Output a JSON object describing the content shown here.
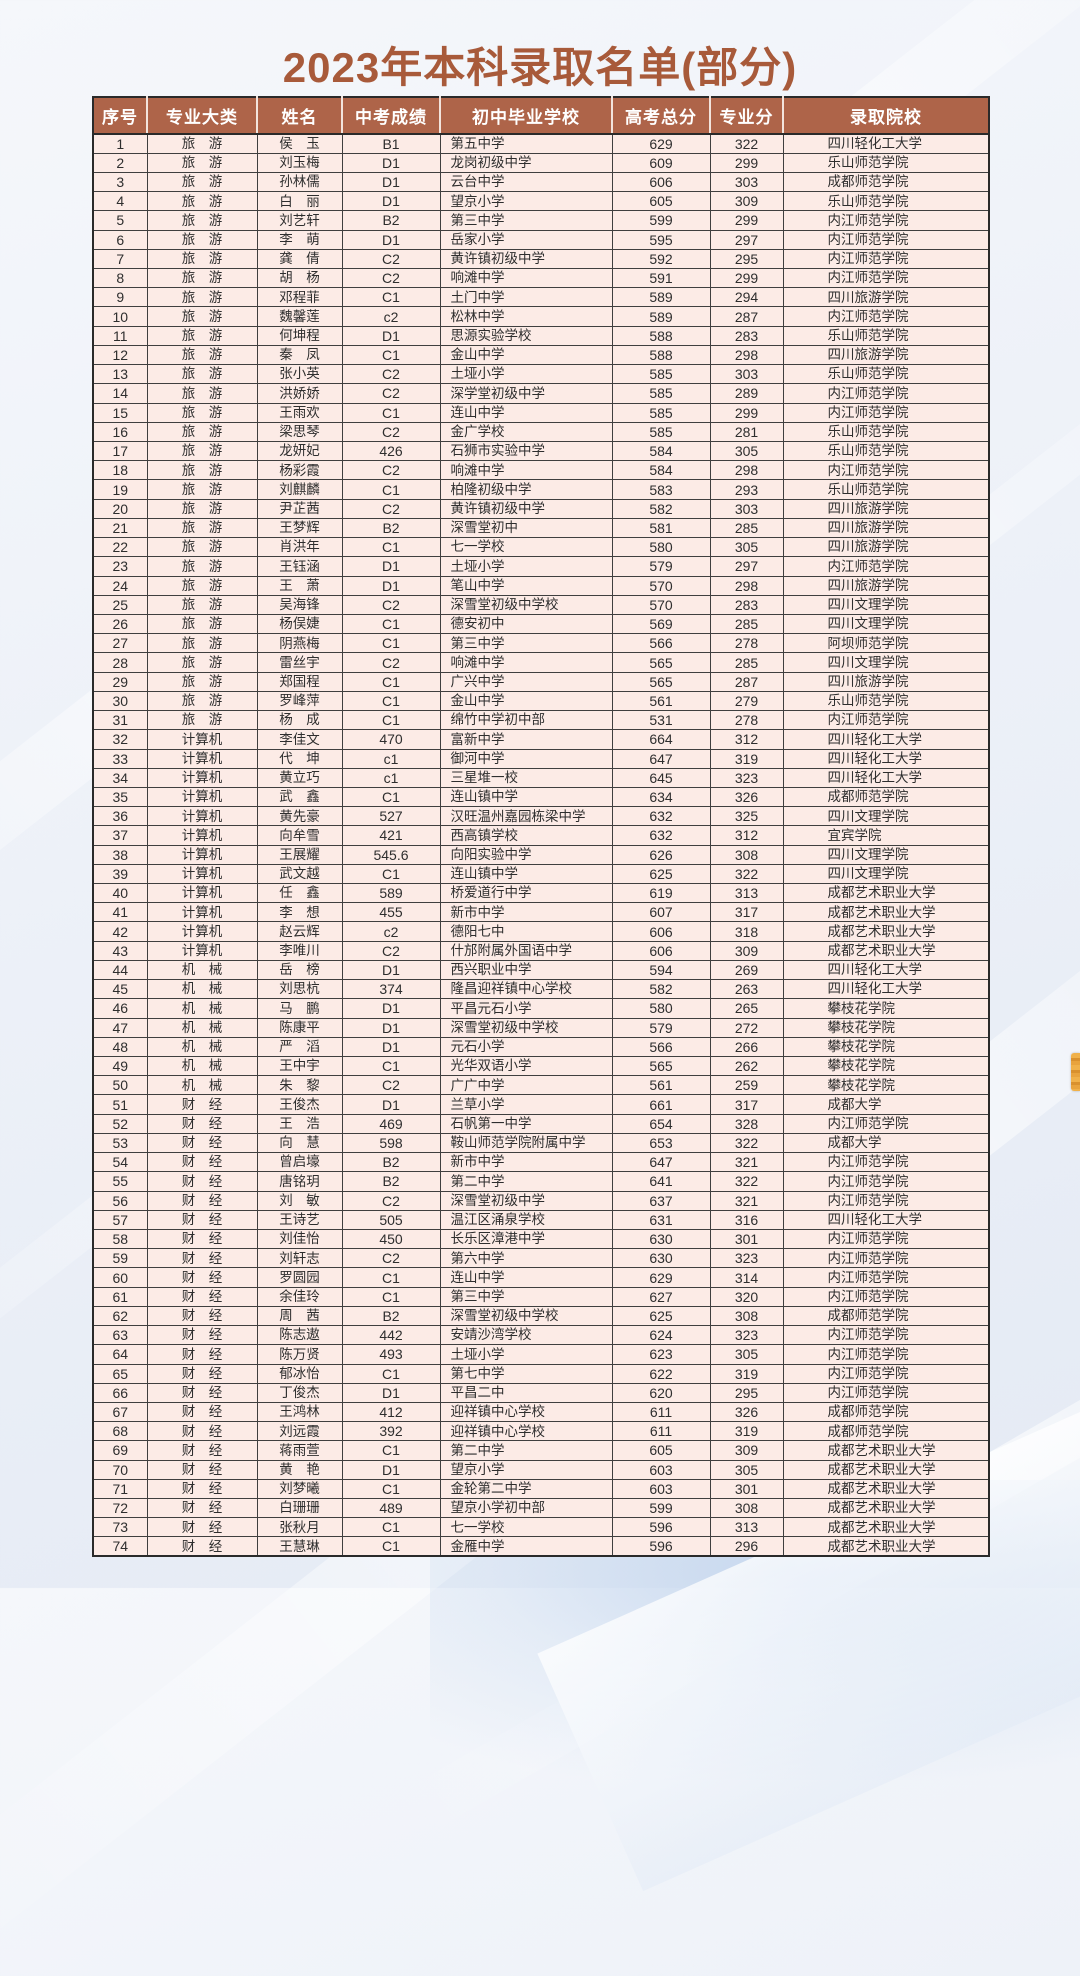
{
  "page": {
    "title": "2023年本科录取名单(部分)"
  },
  "colors": {
    "title_text": "#a85a3a",
    "header_bg": "#ae6449",
    "header_text": "#ffffff",
    "row_bg": "#fcebe6",
    "grid_border": "#3f3f3f",
    "body_text": "#2e2e2e",
    "edge_marker": "#e8a33d"
  },
  "table": {
    "columns": [
      "序号",
      "专业大类",
      "姓名",
      "中考成绩",
      "初中毕业学校",
      "高考总分",
      "专业分",
      "录取院校"
    ],
    "rows": [
      [
        1,
        "旅　游",
        "侯　玉",
        "B1",
        "第五中学",
        629,
        322,
        "四川轻化工大学"
      ],
      [
        2,
        "旅　游",
        "刘玉梅",
        "D1",
        "龙岗初级中学",
        609,
        299,
        "乐山师范学院"
      ],
      [
        3,
        "旅　游",
        "孙林儒",
        "D1",
        "云台中学",
        606,
        303,
        "成都师范学院"
      ],
      [
        4,
        "旅　游",
        "白　丽",
        "D1",
        "望京小学",
        605,
        309,
        "乐山师范学院"
      ],
      [
        5,
        "旅　游",
        "刘艺轩",
        "B2",
        "第三中学",
        599,
        299,
        "内江师范学院"
      ],
      [
        6,
        "旅　游",
        "李　萌",
        "D1",
        "岳家小学",
        595,
        297,
        "内江师范学院"
      ],
      [
        7,
        "旅　游",
        "龚　倩",
        "C2",
        "黄许镇初级中学",
        592,
        295,
        "内江师范学院"
      ],
      [
        8,
        "旅　游",
        "胡　杨",
        "C2",
        "响滩中学",
        591,
        299,
        "内江师范学院"
      ],
      [
        9,
        "旅　游",
        "邓程菲",
        "C1",
        "土门中学",
        589,
        294,
        "四川旅游学院"
      ],
      [
        10,
        "旅　游",
        "魏馨莲",
        "c2",
        "松林中学",
        589,
        287,
        "内江师范学院"
      ],
      [
        11,
        "旅　游",
        "何坤程",
        "D1",
        "思源实验学校",
        588,
        283,
        "乐山师范学院"
      ],
      [
        12,
        "旅　游",
        "秦　凤",
        "C1",
        "金山中学",
        588,
        298,
        "四川旅游学院"
      ],
      [
        13,
        "旅　游",
        "张小英",
        "C2",
        "土垭小学",
        585,
        303,
        "乐山师范学院"
      ],
      [
        14,
        "旅　游",
        "洪娇娇",
        "C2",
        "深学堂初级中学",
        585,
        289,
        "内江师范学院"
      ],
      [
        15,
        "旅　游",
        "王雨欢",
        "C1",
        "连山中学",
        585,
        299,
        "内江师范学院"
      ],
      [
        16,
        "旅　游",
        "梁思琴",
        "C2",
        "金广学校",
        585,
        281,
        "乐山师范学院"
      ],
      [
        17,
        "旅　游",
        "龙妍妃",
        "426",
        "石狮市实验中学",
        584,
        305,
        "乐山师范学院"
      ],
      [
        18,
        "旅　游",
        "杨彩霞",
        "C2",
        "响滩中学",
        584,
        298,
        "内江师范学院"
      ],
      [
        19,
        "旅　游",
        "刘麒麟",
        "C1",
        "柏隆初级中学",
        583,
        293,
        "乐山师范学院"
      ],
      [
        20,
        "旅　游",
        "尹芷茜",
        "C2",
        "黄许镇初级中学",
        582,
        303,
        "四川旅游学院"
      ],
      [
        21,
        "旅　游",
        "王梦辉",
        "B2",
        "深雪堂初中",
        581,
        285,
        "四川旅游学院"
      ],
      [
        22,
        "旅　游",
        "肖洪年",
        "C1",
        "七一学校",
        580,
        305,
        "四川旅游学院"
      ],
      [
        23,
        "旅　游",
        "王钰涵",
        "D1",
        "土垭小学",
        579,
        297,
        "内江师范学院"
      ],
      [
        24,
        "旅　游",
        "王　萧",
        "D1",
        "笔山中学",
        570,
        298,
        "四川旅游学院"
      ],
      [
        25,
        "旅　游",
        "吴海锋",
        "C2",
        "深雪堂初级中学校",
        570,
        283,
        "四川文理学院"
      ],
      [
        26,
        "旅　游",
        "杨俣婕",
        "C1",
        "德安初中",
        569,
        285,
        "四川文理学院"
      ],
      [
        27,
        "旅　游",
        "阴燕梅",
        "C1",
        "第三中学",
        566,
        278,
        "阿坝师范学院"
      ],
      [
        28,
        "旅　游",
        "雷丝宇",
        "C2",
        "响滩中学",
        565,
        285,
        "四川文理学院"
      ],
      [
        29,
        "旅　游",
        "郑国程",
        "C1",
        "广兴中学",
        565,
        287,
        "四川旅游学院"
      ],
      [
        30,
        "旅　游",
        "罗峰萍",
        "C1",
        "金山中学",
        561,
        279,
        "乐山师范学院"
      ],
      [
        31,
        "旅　游",
        "杨　成",
        "C1",
        "绵竹中学初中部",
        531,
        278,
        "内江师范学院"
      ],
      [
        32,
        "计算机",
        "李佳文",
        "470",
        "富新中学",
        664,
        312,
        "四川轻化工大学"
      ],
      [
        33,
        "计算机",
        "代　坤",
        "c1",
        "御河中学",
        647,
        319,
        "四川轻化工大学"
      ],
      [
        34,
        "计算机",
        "黄立巧",
        "c1",
        "三星堆一校",
        645,
        323,
        "四川轻化工大学"
      ],
      [
        35,
        "计算机",
        "武　鑫",
        "C1",
        "连山镇中学",
        634,
        326,
        "成都师范学院"
      ],
      [
        36,
        "计算机",
        "黄先豪",
        "527",
        "汉旺温州嘉园栋梁中学",
        632,
        325,
        "四川文理学院"
      ],
      [
        37,
        "计算机",
        "向牟雪",
        "421",
        "西高镇学校",
        632,
        312,
        "宜宾学院"
      ],
      [
        38,
        "计算机",
        "王展耀",
        "545.6",
        "向阳实验中学",
        626,
        308,
        "四川文理学院"
      ],
      [
        39,
        "计算机",
        "武文越",
        "C1",
        "连山镇中学",
        625,
        322,
        "四川文理学院"
      ],
      [
        40,
        "计算机",
        "任　鑫",
        "589",
        "桥爱道行中学",
        619,
        313,
        "成都艺术职业大学"
      ],
      [
        41,
        "计算机",
        "李　想",
        "455",
        "新市中学",
        607,
        317,
        "成都艺术职业大学"
      ],
      [
        42,
        "计算机",
        "赵云辉",
        "c2",
        "德阳七中",
        606,
        318,
        "成都艺术职业大学"
      ],
      [
        43,
        "计算机",
        "李唯川",
        "C2",
        "什邡附属外国语中学",
        606,
        309,
        "成都艺术职业大学"
      ],
      [
        44,
        "机　械",
        "岳　榜",
        "D1",
        "西兴职业中学",
        594,
        269,
        "四川轻化工大学"
      ],
      [
        45,
        "机　械",
        "刘思杭",
        "374",
        "隆昌迎祥镇中心学校",
        582,
        263,
        "四川轻化工大学"
      ],
      [
        46,
        "机　械",
        "马　鹏",
        "D1",
        "平昌元石小学",
        580,
        265,
        "攀枝花学院"
      ],
      [
        47,
        "机　械",
        "陈康平",
        "D1",
        "深雪堂初级中学校",
        579,
        272,
        "攀枝花学院"
      ],
      [
        48,
        "机　械",
        "严　滔",
        "D1",
        "元石小学",
        566,
        266,
        "攀枝花学院"
      ],
      [
        49,
        "机　械",
        "王中宇",
        "C1",
        "光华双语小学",
        565,
        262,
        "攀枝花学院"
      ],
      [
        50,
        "机　械",
        "朱　黎",
        "C2",
        "广广中学",
        561,
        259,
        "攀枝花学院"
      ],
      [
        51,
        "财　经",
        "王俊杰",
        "D1",
        "兰草小学",
        661,
        317,
        "成都大学"
      ],
      [
        52,
        "财　经",
        "王　浩",
        "469",
        "石帆第一中学",
        654,
        328,
        "内江师范学院"
      ],
      [
        53,
        "财　经",
        "向　慧",
        "598",
        "鞍山师范学院附属中学",
        653,
        322,
        "成都大学"
      ],
      [
        54,
        "财　经",
        "曾启壕",
        "B2",
        "新市中学",
        647,
        321,
        "内江师范学院"
      ],
      [
        55,
        "财　经",
        "唐铭玥",
        "B2",
        "第二中学",
        641,
        322,
        "内江师范学院"
      ],
      [
        56,
        "财　经",
        "刘　敏",
        "C2",
        "深雪堂初级中学",
        637,
        321,
        "内江师范学院"
      ],
      [
        57,
        "财　经",
        "王诗艺",
        "505",
        "温江区涌泉学校",
        631,
        316,
        "四川轻化工大学"
      ],
      [
        58,
        "财　经",
        "刘佳怡",
        "450",
        "长乐区漳港中学",
        630,
        301,
        "内江师范学院"
      ],
      [
        59,
        "财　经",
        "刘轩志",
        "C2",
        "第六中学",
        630,
        323,
        "内江师范学院"
      ],
      [
        60,
        "财　经",
        "罗圆园",
        "C1",
        "连山中学",
        629,
        314,
        "内江师范学院"
      ],
      [
        61,
        "财　经",
        "余佳玲",
        "C1",
        "第三中学",
        627,
        320,
        "内江师范学院"
      ],
      [
        62,
        "财　经",
        "周　茜",
        "B2",
        "深雪堂初级中学校",
        625,
        308,
        "成都师范学院"
      ],
      [
        63,
        "财　经",
        "陈志遨",
        "442",
        "安靖沙湾学校",
        624,
        323,
        "内江师范学院"
      ],
      [
        64,
        "财　经",
        "陈万贤",
        "493",
        "土垭小学",
        623,
        305,
        "内江师范学院"
      ],
      [
        65,
        "财　经",
        "郁冰怡",
        "C1",
        "第七中学",
        622,
        319,
        "内江师范学院"
      ],
      [
        66,
        "财　经",
        "丁俊杰",
        "D1",
        "平昌二中",
        620,
        295,
        "内江师范学院"
      ],
      [
        67,
        "财　经",
        "王鸿林",
        "412",
        "迎祥镇中心学校",
        611,
        326,
        "成都师范学院"
      ],
      [
        68,
        "财　经",
        "刘远霞",
        "392",
        "迎祥镇中心学校",
        611,
        319,
        "成都师范学院"
      ],
      [
        69,
        "财　经",
        "蒋雨萱",
        "C1",
        "第二中学",
        605,
        309,
        "成都艺术职业大学"
      ],
      [
        70,
        "财　经",
        "黄　艳",
        "D1",
        "望京小学",
        603,
        305,
        "成都艺术职业大学"
      ],
      [
        71,
        "财　经",
        "刘梦曦",
        "C1",
        "金轮第二中学",
        603,
        301,
        "成都艺术职业大学"
      ],
      [
        72,
        "财　经",
        "白珊珊",
        "489",
        "望京小学初中部",
        599,
        308,
        "成都艺术职业大学"
      ],
      [
        73,
        "财　经",
        "张秋月",
        "C1",
        "七一学校",
        596,
        313,
        "成都艺术职业大学"
      ],
      [
        74,
        "财　经",
        "王慧琳",
        "C1",
        "金雁中学",
        596,
        296,
        "成都艺术职业大学"
      ]
    ]
  }
}
